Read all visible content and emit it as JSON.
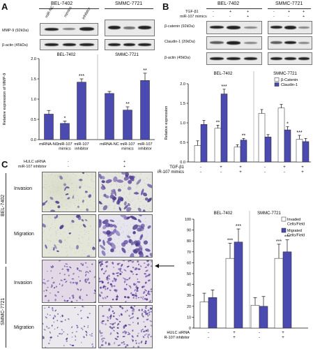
{
  "panels": {
    "A": "A",
    "B": "B",
    "C": "C"
  },
  "panelA": {
    "cell_lines": [
      "BEL-7402",
      "SMMC-7721"
    ],
    "lane_labels": [
      "miR-NC",
      "mimics",
      "inhibitor"
    ],
    "blot_rows": [
      "MMP-9 (92kDa)",
      "β-actin (45kDa)"
    ]
  },
  "panelB": {
    "cell_lines": [
      "BEL-7402",
      "SMMC-7721"
    ],
    "treatment_rows": [
      "TGF-β1",
      "miR-107 mimics"
    ],
    "treatment_signs": [
      [
        "-",
        "+",
        "+"
      ],
      [
        "-",
        "-",
        "+"
      ]
    ],
    "blot_rows": [
      "β-catenin (92kDa)",
      "Claudin-1 (20kDa)",
      "β-actin (45kDa)"
    ]
  },
  "panelC": {
    "treatment_rows": [
      "HULC siRNA",
      "miR-107 inhibitor"
    ],
    "column_signs": [
      [
        "-",
        "-"
      ],
      [
        "+",
        "+"
      ]
    ],
    "row_groups": [
      "BEL-7402",
      "SMMC-7721"
    ],
    "row_labels": [
      "Invasion",
      "Migration",
      "Invasion",
      "Migration"
    ]
  },
  "chart_data": [
    {
      "type": "bar",
      "ylabel": "Relative expression of MMP-9",
      "ylim": [
        0,
        2.0
      ],
      "yticks": [
        "0.0",
        "0.5",
        "1.0",
        "1.5",
        "2.0"
      ],
      "group_labels": [
        "BEL-7402",
        "SMMC-7721"
      ],
      "categories": [
        "miRNA-NC",
        "miR-107 mimics",
        "miR-107 inhibitor",
        "miRNA-NC",
        "miR-107 mimics",
        "miR-107 inhibitor"
      ],
      "values": [
        0.63,
        0.4,
        1.42,
        1.14,
        0.73,
        1.46
      ],
      "errors": [
        0.09,
        0.06,
        0.08,
        0.05,
        0.08,
        0.18
      ],
      "annotations": [
        "",
        "*",
        "***",
        "",
        "**",
        "**"
      ],
      "color": "#4a4ab0"
    },
    {
      "type": "bar",
      "ylabel": "Relative expression",
      "ylim": [
        0,
        2.0
      ],
      "yticks": [
        "0.0",
        "0.5",
        "1.0",
        "1.5",
        "2.0"
      ],
      "group_labels": [
        "BEL-7402",
        "SMMC-7721"
      ],
      "treatment_rows": [
        "TGF-β1",
        "miR-107 mimics"
      ],
      "treatment_signs": [
        [
          "-",
          "+",
          "+",
          "-",
          "+",
          "+"
        ],
        [
          "-",
          "-",
          "+",
          "-",
          "-",
          "+"
        ]
      ],
      "series": [
        {
          "name": "β-Catenin",
          "values": [
            0.42,
            0.86,
            0.38,
            1.24,
            1.38,
            0.58
          ],
          "errors": [
            0.12,
            0.08,
            0.06,
            0.1,
            0.09,
            0.1
          ],
          "annotations": [
            "",
            "**",
            "",
            "",
            "",
            "***"
          ],
          "color": "#ffffff"
        },
        {
          "name": "Claudin-1",
          "values": [
            0.96,
            1.74,
            0.56,
            0.64,
            0.82,
            0.52
          ],
          "errors": [
            0.1,
            0.12,
            0.04,
            0.06,
            0.08,
            0.08
          ],
          "annotations": [
            "",
            "***",
            "**",
            "",
            "*",
            ""
          ],
          "color": "#4a4ab0"
        }
      ]
    },
    {
      "type": "bar",
      "ylabel": "",
      "ylim": [
        0,
        100
      ],
      "yticks": [
        "0",
        "10",
        "20",
        "30",
        "40",
        "50",
        "60",
        "70",
        "80",
        "90",
        "100"
      ],
      "group_labels": [
        "BEL-7402",
        "SMMC-7721"
      ],
      "treatment_rows": [
        "HULC siRNA",
        "miR-107 inhibitor"
      ],
      "treatment_signs": [
        [
          "-",
          "+",
          "-",
          "+"
        ],
        [
          "-",
          "+",
          "-",
          "+"
        ]
      ],
      "series": [
        {
          "name": "Invaded Cells/Field",
          "values": [
            24,
            64,
            21,
            64
          ],
          "errors": [
            8,
            14,
            7,
            13
          ],
          "annotations": [
            "",
            "***",
            "",
            "***"
          ],
          "color": "#ffffff"
        },
        {
          "name": "Migrated Cells/Field",
          "values": [
            28,
            79,
            20,
            70
          ],
          "errors": [
            7,
            12,
            9,
            11
          ],
          "annotations": [
            "",
            "***",
            "",
            "***"
          ],
          "color": "#4a4ab0"
        }
      ]
    }
  ]
}
